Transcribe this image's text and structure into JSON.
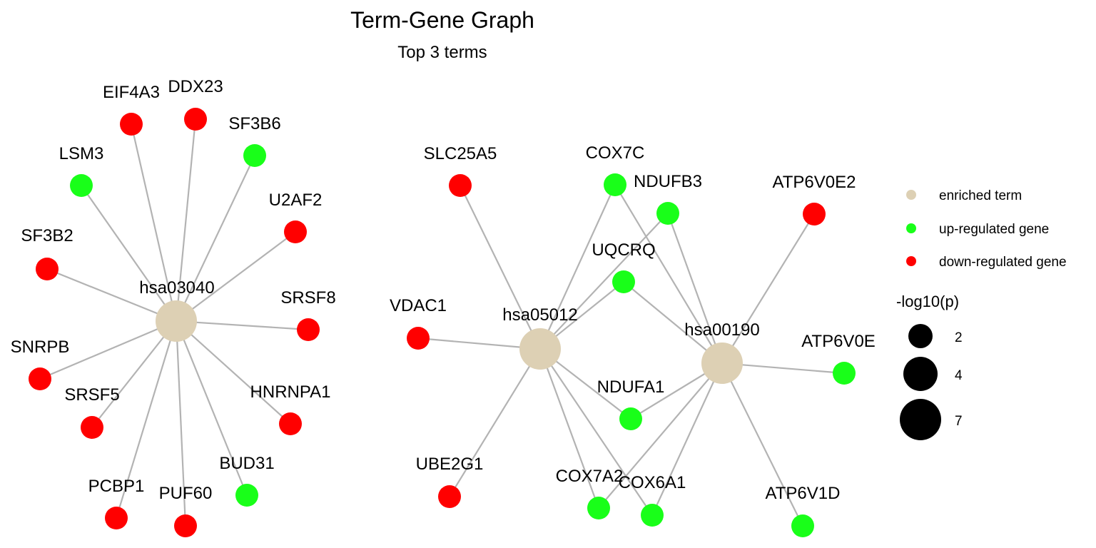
{
  "header": {
    "title": "Term-Gene Graph",
    "subtitle": "Top 3 terms"
  },
  "colors": {
    "term": "#ddd0b4",
    "up": "#19ff19",
    "down": "#ff0000",
    "edge": "#b3b3b3"
  },
  "nodes": [
    {
      "id": "hsa03040",
      "label": "hsa03040",
      "type": "term"
    },
    {
      "id": "hsa05012",
      "label": "hsa05012",
      "type": "term"
    },
    {
      "id": "hsa00190",
      "label": "hsa00190",
      "type": "term"
    },
    {
      "id": "EIF4A3",
      "label": "EIF4A3",
      "type": "down"
    },
    {
      "id": "DDX23",
      "label": "DDX23",
      "type": "down"
    },
    {
      "id": "SF3B6",
      "label": "SF3B6",
      "type": "up"
    },
    {
      "id": "LSM3",
      "label": "LSM3",
      "type": "up"
    },
    {
      "id": "U2AF2",
      "label": "U2AF2",
      "type": "down"
    },
    {
      "id": "SF3B2",
      "label": "SF3B2",
      "type": "down"
    },
    {
      "id": "SRSF8",
      "label": "SRSF8",
      "type": "down"
    },
    {
      "id": "SNRPB",
      "label": "SNRPB",
      "type": "down"
    },
    {
      "id": "SRSF5",
      "label": "SRSF5",
      "type": "down"
    },
    {
      "id": "HNRNPA1",
      "label": "HNRNPA1",
      "type": "down"
    },
    {
      "id": "BUD31",
      "label": "BUD31",
      "type": "up"
    },
    {
      "id": "PCBP1",
      "label": "PCBP1",
      "type": "down"
    },
    {
      "id": "PUF60",
      "label": "PUF60",
      "type": "down"
    },
    {
      "id": "SLC25A5",
      "label": "SLC25A5",
      "type": "down"
    },
    {
      "id": "COX7C",
      "label": "COX7C",
      "type": "up"
    },
    {
      "id": "NDUFB3",
      "label": "NDUFB3",
      "type": "up"
    },
    {
      "id": "ATP6V0E2",
      "label": "ATP6V0E2",
      "type": "down"
    },
    {
      "id": "UQCRQ",
      "label": "UQCRQ",
      "type": "up"
    },
    {
      "id": "VDAC1",
      "label": "VDAC1",
      "type": "down"
    },
    {
      "id": "ATP6V0E",
      "label": "ATP6V0E",
      "type": "up"
    },
    {
      "id": "NDUFA1",
      "label": "NDUFA1",
      "type": "up"
    },
    {
      "id": "UBE2G1",
      "label": "UBE2G1",
      "type": "down"
    },
    {
      "id": "COX7A2",
      "label": "COX7A2",
      "type": "up"
    },
    {
      "id": "COX6A1",
      "label": "COX6A1",
      "type": "up"
    },
    {
      "id": "ATP6V1D",
      "label": "ATP6V1D",
      "type": "up"
    }
  ],
  "edges": [
    [
      "hsa03040",
      "EIF4A3"
    ],
    [
      "hsa03040",
      "DDX23"
    ],
    [
      "hsa03040",
      "SF3B6"
    ],
    [
      "hsa03040",
      "LSM3"
    ],
    [
      "hsa03040",
      "U2AF2"
    ],
    [
      "hsa03040",
      "SF3B2"
    ],
    [
      "hsa03040",
      "SRSF8"
    ],
    [
      "hsa03040",
      "SNRPB"
    ],
    [
      "hsa03040",
      "SRSF5"
    ],
    [
      "hsa03040",
      "HNRNPA1"
    ],
    [
      "hsa03040",
      "BUD31"
    ],
    [
      "hsa03040",
      "PCBP1"
    ],
    [
      "hsa03040",
      "PUF60"
    ],
    [
      "hsa05012",
      "SLC25A5"
    ],
    [
      "hsa05012",
      "COX7C"
    ],
    [
      "hsa05012",
      "NDUFB3"
    ],
    [
      "hsa05012",
      "UQCRQ"
    ],
    [
      "hsa05012",
      "VDAC1"
    ],
    [
      "hsa05012",
      "NDUFA1"
    ],
    [
      "hsa05012",
      "UBE2G1"
    ],
    [
      "hsa05012",
      "COX7A2"
    ],
    [
      "hsa05012",
      "COX6A1"
    ],
    [
      "hsa00190",
      "COX7C"
    ],
    [
      "hsa00190",
      "NDUFB3"
    ],
    [
      "hsa00190",
      "ATP6V0E2"
    ],
    [
      "hsa00190",
      "UQCRQ"
    ],
    [
      "hsa00190",
      "ATP6V0E"
    ],
    [
      "hsa00190",
      "NDUFA1"
    ],
    [
      "hsa00190",
      "COX7A2"
    ],
    [
      "hsa00190",
      "COX6A1"
    ],
    [
      "hsa00190",
      "ATP6V1D"
    ]
  ],
  "legend": {
    "type_items": [
      {
        "label": "enriched term",
        "type": "term"
      },
      {
        "label": "up-regulated gene",
        "type": "up"
      },
      {
        "label": "down-regulated gene",
        "type": "down"
      }
    ],
    "size_title": "-log10(p)",
    "size_items": [
      {
        "label": "2",
        "value": 2
      },
      {
        "label": "4",
        "value": 4
      },
      {
        "label": "7",
        "value": 7
      }
    ]
  }
}
